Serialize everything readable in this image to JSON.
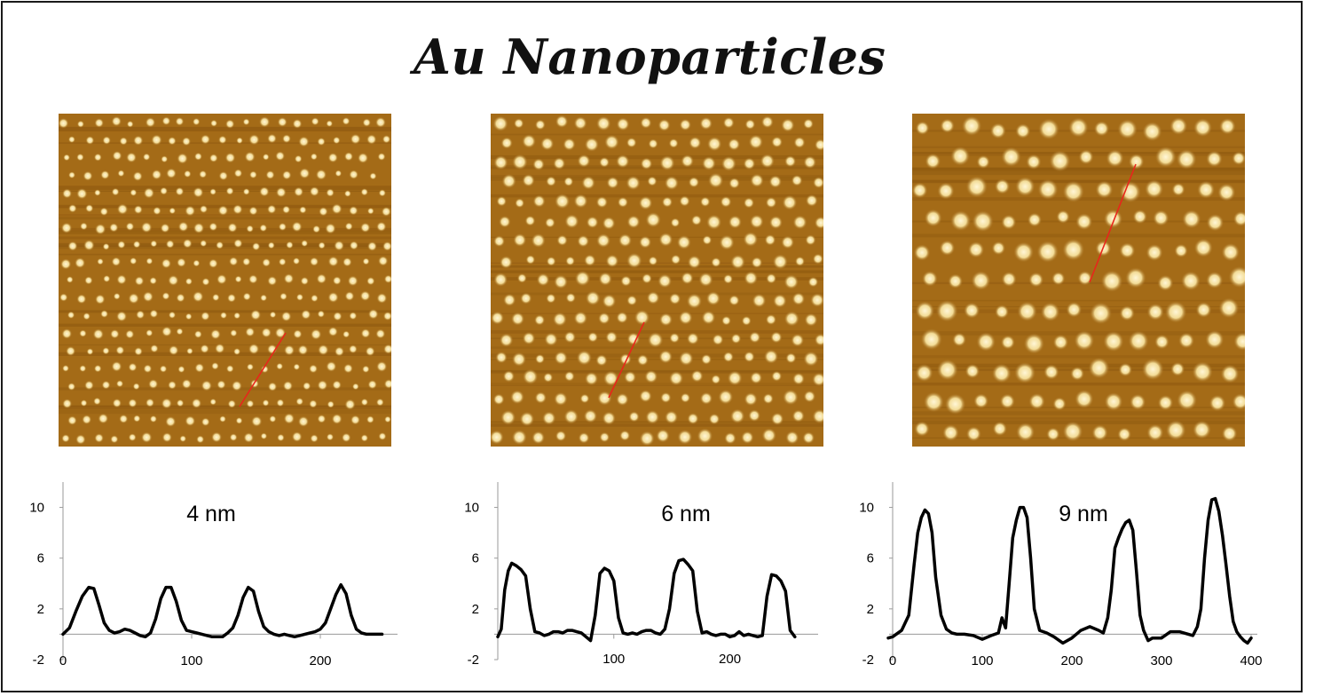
{
  "title": "Au Nanoparticles",
  "colors": {
    "substrate": "#a46b17",
    "substrate_dark": "#8f5a10",
    "particle": "#fff6d6",
    "scan_line": "#e8261b",
    "profile": "#000000",
    "axis": "#9a9a9a"
  },
  "afm_images": [
    {
      "particle_size": "small",
      "rows": 19,
      "cols": 20,
      "dot_radius": 0.0085
    },
    {
      "particle_size": "medium",
      "rows": 17,
      "cols": 16,
      "dot_radius": 0.012
    },
    {
      "particle_size": "large",
      "rows": 11,
      "cols": 13,
      "dot_radius": 0.017
    }
  ],
  "chart_data": [
    {
      "type": "line",
      "annotation": "4 nm",
      "xlim": [
        0,
        260
      ],
      "ylim": [
        -2,
        12
      ],
      "xticks": [
        0,
        100,
        200
      ],
      "yticks": [
        -2,
        2,
        6,
        10
      ],
      "series": [
        {
          "x": [
            0,
            5,
            10,
            15,
            20,
            24,
            28,
            32,
            36,
            40,
            44,
            48,
            52,
            56,
            60,
            64,
            68,
            72,
            76,
            80,
            84,
            88,
            92,
            96,
            100,
            104,
            108,
            112,
            116,
            120,
            124,
            128,
            132,
            136,
            140,
            144,
            148,
            152,
            156,
            160,
            164,
            168,
            172,
            176,
            180,
            184,
            188,
            192,
            196,
            200,
            204,
            208,
            212,
            216,
            220,
            224,
            228,
            232,
            236,
            240,
            244,
            248
          ],
          "y": [
            0.0,
            0.5,
            1.8,
            3.0,
            3.7,
            3.6,
            2.3,
            0.9,
            0.3,
            0.1,
            0.2,
            0.4,
            0.3,
            0.1,
            -0.1,
            -0.2,
            0.1,
            1.2,
            2.8,
            3.7,
            3.7,
            2.6,
            1.1,
            0.3,
            0.2,
            0.1,
            0.0,
            -0.1,
            -0.2,
            -0.2,
            -0.2,
            0.1,
            0.5,
            1.5,
            2.9,
            3.7,
            3.4,
            1.8,
            0.6,
            0.2,
            0.0,
            -0.1,
            0.0,
            -0.1,
            -0.2,
            -0.1,
            0.0,
            0.1,
            0.2,
            0.4,
            0.9,
            2.0,
            3.1,
            3.9,
            3.2,
            1.5,
            0.4,
            0.1,
            0.0,
            0.0,
            0.0,
            0.0
          ]
        }
      ]
    },
    {
      "type": "line",
      "annotation": "6 nm",
      "xlim": [
        0,
        260
      ],
      "ylim": [
        -2,
        12
      ],
      "xticks": [
        100,
        200
      ],
      "yticks": [
        -2,
        2,
        6,
        10
      ],
      "series": [
        {
          "x": [
            0,
            3,
            6,
            9,
            12,
            16,
            20,
            24,
            28,
            32,
            36,
            40,
            44,
            48,
            52,
            56,
            60,
            64,
            68,
            72,
            76,
            80,
            84,
            88,
            92,
            96,
            100,
            104,
            108,
            112,
            116,
            120,
            124,
            128,
            132,
            136,
            140,
            144,
            148,
            152,
            156,
            160,
            164,
            168,
            172,
            176,
            180,
            184,
            188,
            192,
            196,
            200,
            204,
            208,
            212,
            216,
            220,
            224,
            228,
            232,
            236,
            240,
            244,
            248,
            252,
            256
          ],
          "y": [
            -0.2,
            0.4,
            3.5,
            5.0,
            5.6,
            5.4,
            5.1,
            4.6,
            2.0,
            0.2,
            0.1,
            -0.1,
            0.0,
            0.2,
            0.2,
            0.1,
            0.3,
            0.3,
            0.2,
            0.1,
            -0.2,
            -0.5,
            1.5,
            4.8,
            5.2,
            5.0,
            4.2,
            1.3,
            0.1,
            0.0,
            0.1,
            0.0,
            0.2,
            0.3,
            0.3,
            0.1,
            0.0,
            0.4,
            2.0,
            4.8,
            5.8,
            5.9,
            5.5,
            5.0,
            1.8,
            0.1,
            0.2,
            0.0,
            -0.1,
            0.0,
            0.0,
            -0.2,
            -0.1,
            0.2,
            -0.1,
            0.0,
            -0.1,
            -0.2,
            -0.1,
            3.0,
            4.7,
            4.6,
            4.2,
            3.4,
            0.3,
            -0.2
          ]
        }
      ]
    },
    {
      "type": "line",
      "annotation": "9 nm",
      "xlim": [
        0,
        400
      ],
      "ylim": [
        -2,
        12
      ],
      "xticks": [
        0,
        100,
        200,
        300,
        400
      ],
      "yticks": [
        -2,
        2,
        6,
        10
      ],
      "series": [
        {
          "x": [
            -5,
            0,
            10,
            18,
            24,
            28,
            32,
            36,
            40,
            44,
            48,
            54,
            60,
            66,
            72,
            80,
            90,
            100,
            110,
            118,
            122,
            126,
            130,
            134,
            138,
            142,
            146,
            150,
            154,
            158,
            164,
            172,
            180,
            190,
            200,
            210,
            220,
            230,
            235,
            240,
            244,
            248,
            252,
            256,
            260,
            264,
            268,
            272,
            276,
            280,
            285,
            290,
            300,
            310,
            320,
            330,
            335,
            340,
            344,
            348,
            352,
            356,
            360,
            364,
            368,
            372,
            376,
            380,
            384,
            388,
            392,
            396,
            400
          ],
          "y": [
            -0.3,
            -0.2,
            0.3,
            1.5,
            5.5,
            8.0,
            9.2,
            9.8,
            9.5,
            8.0,
            4.5,
            1.5,
            0.4,
            0.1,
            0.0,
            0.0,
            -0.1,
            -0.4,
            -0.1,
            0.1,
            1.3,
            0.5,
            4.0,
            7.6,
            9.0,
            10.0,
            10.0,
            9.2,
            6.0,
            2.0,
            0.3,
            0.1,
            -0.2,
            -0.7,
            -0.3,
            0.3,
            0.6,
            0.3,
            0.1,
            1.3,
            3.5,
            6.8,
            7.6,
            8.3,
            8.8,
            9.0,
            8.2,
            5.0,
            1.5,
            0.3,
            -0.5,
            -0.3,
            -0.3,
            0.2,
            0.2,
            0.0,
            -0.1,
            0.6,
            2.0,
            6.0,
            9.0,
            10.6,
            10.7,
            9.7,
            7.8,
            5.5,
            3.0,
            1.0,
            0.2,
            -0.2,
            -0.5,
            -0.7,
            -0.3
          ]
        }
      ]
    }
  ]
}
